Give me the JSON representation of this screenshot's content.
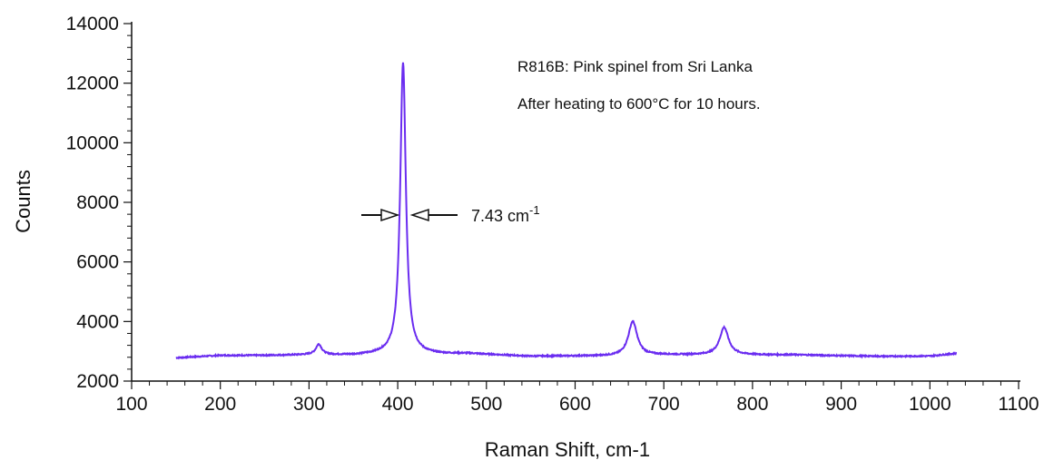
{
  "chart_data": {
    "type": "line",
    "title": "",
    "xlabel": "Raman Shift, cm-1",
    "ylabel": "Counts",
    "xlim": [
      100,
      1100
    ],
    "ylim": [
      2000,
      14000
    ],
    "x_ticks": [
      100,
      200,
      300,
      400,
      500,
      600,
      700,
      800,
      900,
      1000,
      1100
    ],
    "y_ticks": [
      2000,
      4000,
      6000,
      8000,
      10000,
      12000,
      14000
    ],
    "grid": false,
    "legend": "none",
    "annotations": {
      "line1": "R816B: Pink spinel from Sri Lanka",
      "line2": "After heating to 600°C for 10 hours.",
      "fwhm_value": "7.43 cm",
      "fwhm_exponent": "-1"
    },
    "series": [
      {
        "color": "#6a2cf0",
        "x_range": [
          150,
          1030
        ],
        "baseline": [
          [
            150,
            2780
          ],
          [
            200,
            2860
          ],
          [
            250,
            2860
          ],
          [
            300,
            2880
          ],
          [
            350,
            2870
          ],
          [
            380,
            2900
          ],
          [
            450,
            2900
          ],
          [
            480,
            2920
          ],
          [
            550,
            2830
          ],
          [
            600,
            2840
          ],
          [
            650,
            2840
          ],
          [
            700,
            2880
          ],
          [
            750,
            2880
          ],
          [
            800,
            2880
          ],
          [
            850,
            2880
          ],
          [
            900,
            2850
          ],
          [
            950,
            2830
          ],
          [
            1000,
            2840
          ],
          [
            1030,
            2930
          ]
        ],
        "peaks": [
          {
            "center": 311,
            "height": 350,
            "width": 4
          },
          {
            "center": 406,
            "height": 9800,
            "width": 3.8
          },
          {
            "center": 665,
            "height": 1150,
            "width": 6
          },
          {
            "center": 768,
            "height": 920,
            "width": 6
          }
        ]
      }
    ]
  }
}
